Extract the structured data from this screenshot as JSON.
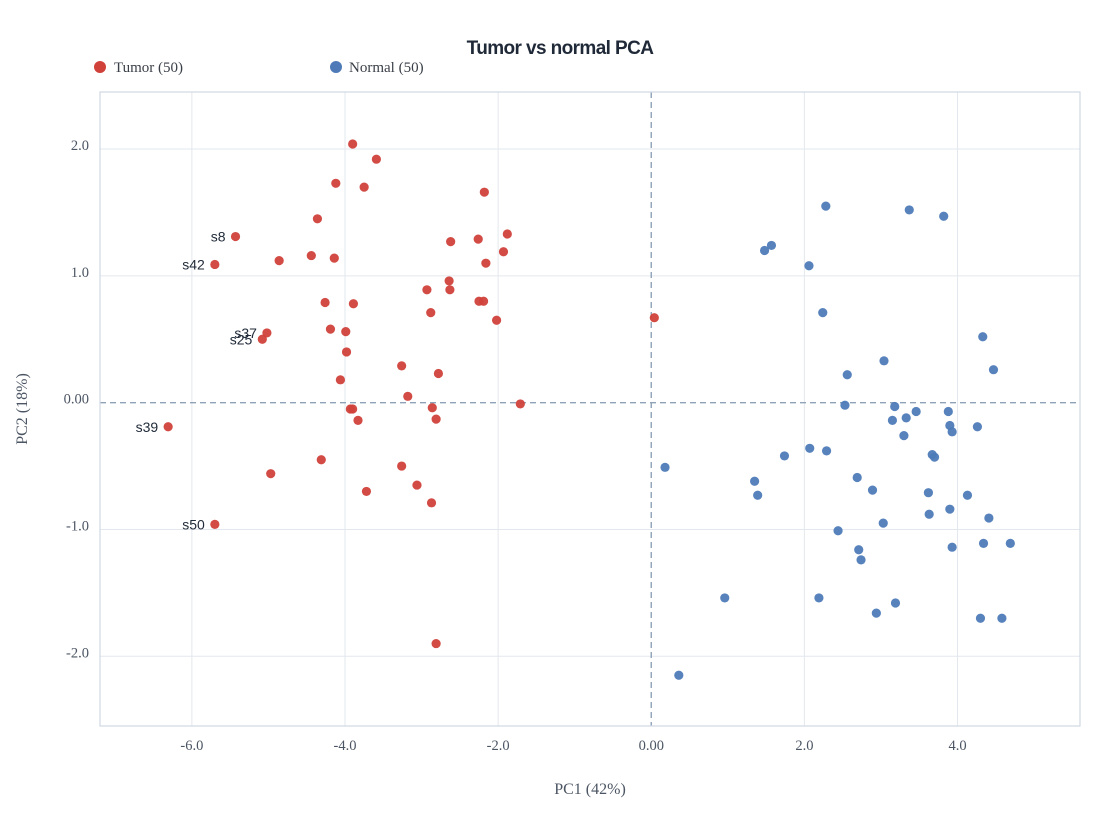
{
  "chart_data": {
    "type": "scatter",
    "title": "Tumor vs normal PCA",
    "xlabel": "PC1 (42%)",
    "ylabel": "PC2 (18%)",
    "xlim": [
      -7.2,
      5.6
    ],
    "ylim": [
      -2.55,
      2.45
    ],
    "xticks": [
      -6.0,
      -4.0,
      -2.0,
      0.0,
      2.0,
      4.0
    ],
    "yticks": [
      -2.0,
      -1.0,
      0.0,
      1.0,
      2.0
    ],
    "xtick_labels": [
      "-6.0",
      "-4.0",
      "-2.0",
      "0.00",
      "2.0",
      "4.0"
    ],
    "ytick_labels": [
      "-2.0",
      "-1.0",
      "0.00",
      "1.0",
      "2.0"
    ],
    "grid": true,
    "reference_lines": {
      "x": 0,
      "y": 0
    },
    "legend_position": "top-left",
    "series": [
      {
        "name": "Tumor (50)",
        "color": "#d0413a",
        "points": [
          [
            -3.9,
            2.04
          ],
          [
            -3.59,
            1.92
          ],
          [
            -4.12,
            1.73
          ],
          [
            -3.75,
            1.7
          ],
          [
            -2.18,
            1.66
          ],
          [
            -4.36,
            1.45
          ],
          [
            -5.43,
            1.31
          ],
          [
            -1.88,
            1.33
          ],
          [
            -2.26,
            1.29
          ],
          [
            -2.62,
            1.27
          ],
          [
            -1.93,
            1.19
          ],
          [
            -4.44,
            1.16
          ],
          [
            -4.14,
            1.14
          ],
          [
            -4.86,
            1.12
          ],
          [
            -2.16,
            1.1
          ],
          [
            -5.7,
            1.09
          ],
          [
            -2.64,
            0.96
          ],
          [
            -2.93,
            0.89
          ],
          [
            -2.63,
            0.89
          ],
          [
            -4.26,
            0.79
          ],
          [
            -2.25,
            0.8
          ],
          [
            -2.19,
            0.8
          ],
          [
            -3.89,
            0.78
          ],
          [
            -2.88,
            0.71
          ],
          [
            -2.02,
            0.65
          ],
          [
            0.04,
            0.67
          ],
          [
            -4.19,
            0.58
          ],
          [
            -3.99,
            0.56
          ],
          [
            -5.02,
            0.55
          ],
          [
            -5.08,
            0.5
          ],
          [
            -3.98,
            0.4
          ],
          [
            -3.26,
            0.29
          ],
          [
            -2.78,
            0.23
          ],
          [
            -4.06,
            0.18
          ],
          [
            -3.18,
            0.05
          ],
          [
            -1.71,
            -0.01
          ],
          [
            -3.93,
            -0.05
          ],
          [
            -3.9,
            -0.05
          ],
          [
            -2.86,
            -0.04
          ],
          [
            -3.83,
            -0.14
          ],
          [
            -2.81,
            -0.13
          ],
          [
            -6.31,
            -0.19
          ],
          [
            -4.31,
            -0.45
          ],
          [
            -3.26,
            -0.5
          ],
          [
            -4.97,
            -0.56
          ],
          [
            -3.06,
            -0.65
          ],
          [
            -3.72,
            -0.7
          ],
          [
            -2.87,
            -0.79
          ],
          [
            -5.7,
            -0.96
          ],
          [
            -2.81,
            -1.9
          ]
        ]
      },
      {
        "name": "Normal (50)",
        "color": "#4e7bb8",
        "points": [
          [
            2.28,
            1.55
          ],
          [
            3.37,
            1.52
          ],
          [
            3.82,
            1.47
          ],
          [
            1.57,
            1.24
          ],
          [
            1.48,
            1.2
          ],
          [
            2.06,
            1.08
          ],
          [
            2.24,
            0.71
          ],
          [
            4.33,
            0.52
          ],
          [
            3.04,
            0.33
          ],
          [
            4.47,
            0.26
          ],
          [
            2.56,
            0.22
          ],
          [
            2.53,
            -0.02
          ],
          [
            3.18,
            -0.03
          ],
          [
            3.88,
            -0.07
          ],
          [
            3.46,
            -0.07
          ],
          [
            3.33,
            -0.12
          ],
          [
            3.15,
            -0.14
          ],
          [
            3.9,
            -0.18
          ],
          [
            4.26,
            -0.19
          ],
          [
            3.93,
            -0.23
          ],
          [
            3.3,
            -0.26
          ],
          [
            2.07,
            -0.36
          ],
          [
            2.29,
            -0.38
          ],
          [
            1.74,
            -0.42
          ],
          [
            3.67,
            -0.41
          ],
          [
            3.7,
            -0.43
          ],
          [
            0.18,
            -0.51
          ],
          [
            2.69,
            -0.59
          ],
          [
            1.35,
            -0.62
          ],
          [
            2.89,
            -0.69
          ],
          [
            3.62,
            -0.71
          ],
          [
            1.39,
            -0.73
          ],
          [
            4.13,
            -0.73
          ],
          [
            3.9,
            -0.84
          ],
          [
            3.63,
            -0.88
          ],
          [
            4.41,
            -0.91
          ],
          [
            3.03,
            -0.95
          ],
          [
            2.44,
            -1.01
          ],
          [
            4.34,
            -1.11
          ],
          [
            4.69,
            -1.11
          ],
          [
            3.93,
            -1.14
          ],
          [
            2.71,
            -1.16
          ],
          [
            2.74,
            -1.24
          ],
          [
            0.96,
            -1.54
          ],
          [
            2.19,
            -1.54
          ],
          [
            3.19,
            -1.58
          ],
          [
            2.94,
            -1.66
          ],
          [
            4.3,
            -1.7
          ],
          [
            4.58,
            -1.7
          ],
          [
            0.36,
            -2.15
          ]
        ]
      }
    ],
    "annotations": [
      {
        "text": "s8",
        "x": -5.43,
        "y": 1.31
      },
      {
        "text": "s42",
        "x": -5.7,
        "y": 1.09
      },
      {
        "text": "s37",
        "x": -5.02,
        "y": 0.55
      },
      {
        "text": "s25",
        "x": -5.08,
        "y": 0.5
      },
      {
        "text": "s39",
        "x": -6.31,
        "y": -0.19
      },
      {
        "text": "s50",
        "x": -5.7,
        "y": -0.96
      }
    ]
  }
}
